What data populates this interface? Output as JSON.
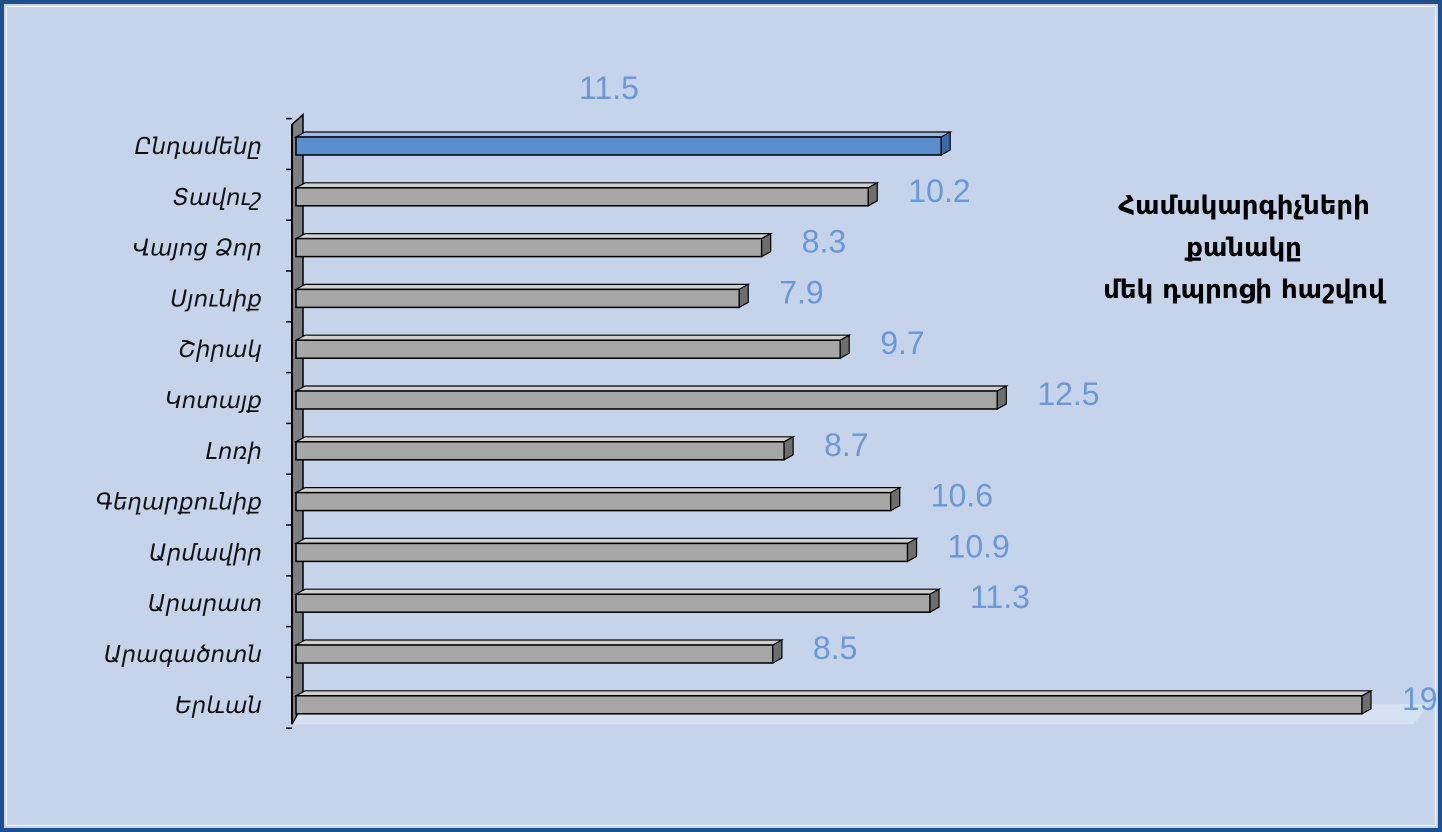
{
  "chart_data": {
    "type": "bar",
    "orientation": "horizontal",
    "title_lines": [
      "Համակարգիչների",
      "քանակը",
      "մեկ դպրոցի հաշվով"
    ],
    "categories": [
      "Ընդամենը",
      "Տավուշ",
      "Վայոց Ձոր",
      "Սյունիք",
      "Շիրակ",
      "Կոտայք",
      "Լոռի",
      "Գեղարքունիք",
      "Արմավիր",
      "Արարատ",
      "Արագածոտն",
      "Երևան"
    ],
    "values": [
      11.5,
      10.2,
      8.3,
      7.9,
      9.7,
      12.5,
      8.7,
      10.6,
      10.9,
      11.3,
      8.5,
      19.0
    ],
    "value_labels": [
      "11.5",
      "10.2",
      "8.3",
      "7.9",
      "9.7",
      "12.5",
      "8.7",
      "10.6",
      "10.9",
      "11.3",
      "8.5",
      "19.0"
    ],
    "highlight_index": 0,
    "xlim": [
      0,
      19
    ],
    "grid": false,
    "legend": "none",
    "colors": {
      "frame": "#1f4e8c",
      "background": "#c5d4ea",
      "bar": "#a6a6a6",
      "bar_highlight": "#5b8ed0",
      "value_text": "#6b98d6"
    }
  }
}
